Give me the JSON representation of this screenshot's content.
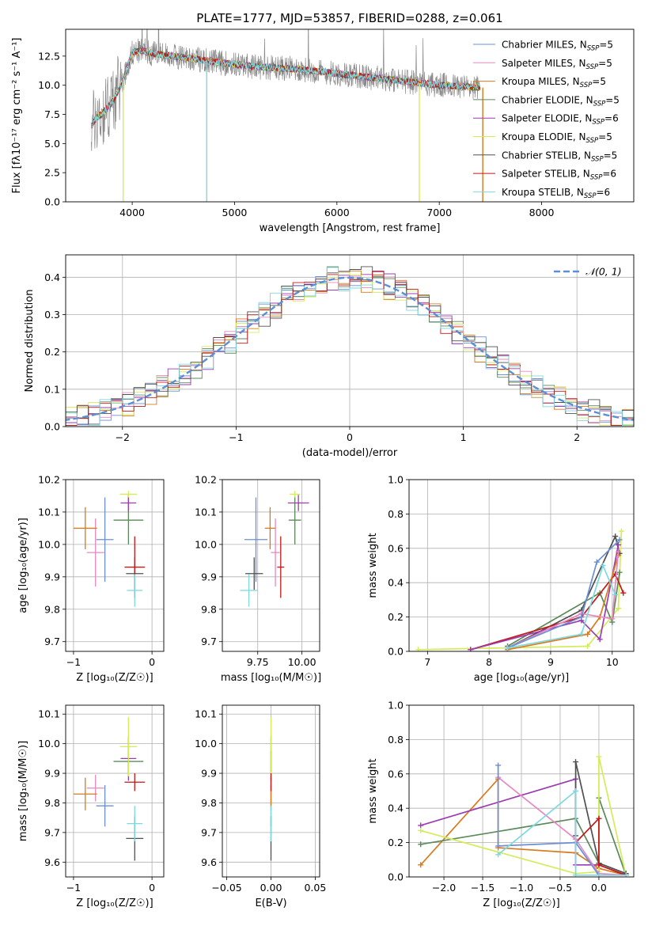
{
  "chart_data": [
    {
      "id": "spectrum",
      "type": "line",
      "title": "PLATE=1777, MJD=53857, FIBERID=0288, z=0.061",
      "xlabel": "wavelength [Angstrom, rest frame]",
      "ylabel": "Flux [f$_\\lambda$10$^{-17}$ erg cm$^{-2}$ s$^{-1}$ A$^{-1}$]",
      "ylabel_text": "Flux [fλ10⁻¹⁷ erg cm⁻² s⁻¹ A⁻¹]",
      "xlim": [
        3350,
        8900
      ],
      "ylim": [
        0,
        14.8
      ],
      "xticks": [
        4000,
        5000,
        6000,
        7000,
        8000
      ],
      "yticks": [
        0.0,
        2.5,
        5.0,
        7.5,
        10.0,
        12.5
      ],
      "grid": false,
      "legend": "top-right",
      "data_envelope": {
        "x": [
          3600,
          3650,
          3700,
          3800,
          3900,
          4000,
          4100,
          4200,
          4400,
          4600,
          4800,
          5000,
          5200,
          5400,
          5600,
          5800,
          6000,
          6200,
          6400,
          6600,
          6800,
          7000,
          7200,
          7400
        ],
        "y": [
          6.5,
          7.2,
          7.5,
          8.5,
          10.2,
          12.8,
          13.0,
          12.7,
          12.5,
          12.3,
          12.0,
          11.8,
          11.6,
          11.5,
          11.4,
          11.2,
          11.0,
          10.8,
          10.6,
          10.4,
          10.2,
          10.0,
          9.9,
          9.8
        ]
      },
      "series": [
        {
          "name": "Chabrier MILES, N$_{SSP}$=5",
          "label": "Chabrier MILES, N",
          "sub": "SSP",
          "n": "=5",
          "color": "#6b8fd6"
        },
        {
          "name": "Salpeter MILES, N$_{SSP}$=5",
          "label": "Salpeter MILES, N",
          "sub": "SSP",
          "n": "=5",
          "color": "#e888c0"
        },
        {
          "name": "Kroupa MILES, N$_{SSP}$=5",
          "label": "Kroupa MILES, N",
          "sub": "SSP",
          "n": "=5",
          "color": "#d87a1e"
        },
        {
          "name": "Chabrier ELODIE, N$_{SSP}$=5",
          "label": "Chabrier ELODIE, N",
          "sub": "SSP",
          "n": "=5",
          "color": "#5a8a5a"
        },
        {
          "name": "Salpeter ELODIE, N$_{SSP}$=6",
          "label": "Salpeter ELODIE, N",
          "sub": "SSP",
          "n": "=6",
          "color": "#9b3cb0"
        },
        {
          "name": "Kroupa ELODIE, N$_{SSP}$=5",
          "label": "Kroupa ELODIE, N",
          "sub": "SSP",
          "n": "=5",
          "color": "#d4ec5a"
        },
        {
          "name": "Chabrier STELIB, N$_{SSP}$=5",
          "label": "Chabrier STELIB, N",
          "sub": "SSP",
          "n": "=5",
          "color": "#505050"
        },
        {
          "name": "Salpeter STELIB, N$_{SSP}$=6",
          "label": "Salpeter STELIB, N",
          "sub": "SSP",
          "n": "=6",
          "color": "#c01818"
        },
        {
          "name": "Kroupa STELIB, N$_{SSP}$=6",
          "label": "Kroupa STELIB, N",
          "sub": "SSP",
          "n": "=6",
          "color": "#7fd8e0"
        }
      ]
    },
    {
      "id": "residuals",
      "type": "line",
      "xlabel": "(data-model)/error",
      "ylabel": "Normed distribution",
      "xlim": [
        -2.5,
        2.5
      ],
      "ylim": [
        0,
        0.46
      ],
      "xticks": [
        -2,
        -1,
        0,
        1,
        2
      ],
      "yticks": [
        0.0,
        0.1,
        0.2,
        0.3,
        0.4
      ],
      "grid": true,
      "legend": "top-right",
      "legend_label": "𝒩(0, 1)",
      "gaussian": {
        "mean": 0,
        "sigma": 1,
        "color": "#5b8fd6"
      },
      "histogram_bin_width": 0.1
    },
    {
      "id": "age_vs_Z",
      "type": "scatter",
      "xlabel": "Z [log₁₀(Z/Z☉)]",
      "ylabel": "age  [log₁₀(age/yr)]",
      "xlim": [
        -1.1,
        0.15
      ],
      "ylim": [
        9.67,
        10.2
      ],
      "xticks": [
        -1,
        0
      ],
      "yticks": [
        9.7,
        9.8,
        9.9,
        10.0,
        10.1,
        10.2
      ],
      "grid": true,
      "points": [
        {
          "x": -0.6,
          "y": 10.015,
          "xe": 0.22,
          "ye": 0.26,
          "color": "#6b8fd6"
        },
        {
          "x": -0.72,
          "y": 9.975,
          "xe": 0.22,
          "ye": 0.21,
          "color": "#e888c0"
        },
        {
          "x": -0.85,
          "y": 10.05,
          "xe": 0.3,
          "ye": 0.13,
          "color": "#d87a1e"
        },
        {
          "x": -0.3,
          "y": 10.075,
          "xe": 0.38,
          "ye": 0.15,
          "color": "#5a8a5a"
        },
        {
          "x": -0.3,
          "y": 10.128,
          "xe": 0.2,
          "ye": 0.05,
          "color": "#9b3cb0"
        },
        {
          "x": -0.3,
          "y": 10.155,
          "xe": 0.22,
          "ye": 0.02,
          "color": "#d4ec5a"
        },
        {
          "x": -0.22,
          "y": 9.91,
          "xe": 0.22,
          "ye": 0.1,
          "color": "#505050"
        },
        {
          "x": -0.22,
          "y": 9.93,
          "xe": 0.26,
          "ye": 0.19,
          "color": "#c01818"
        },
        {
          "x": -0.22,
          "y": 9.858,
          "xe": 0.2,
          "ye": 0.1,
          "color": "#7fd8e0"
        }
      ]
    },
    {
      "id": "age_vs_mass",
      "type": "scatter",
      "xlabel": "mass [log₁₀(M/M☉)]",
      "ylabel": "",
      "xlim": [
        9.55,
        10.1
      ],
      "ylim": [
        9.67,
        10.2
      ],
      "xticks": [
        9.75,
        10.0
      ],
      "xtick_labels": [
        "9.75",
        "10.00"
      ],
      "yticks": [
        9.7,
        9.8,
        9.9,
        10.0,
        10.1,
        10.2
      ],
      "grid": true,
      "points": [
        {
          "x": 9.74,
          "y": 10.015,
          "xe": 0.13,
          "ye": 0.26,
          "color": "#6b8fd6"
        },
        {
          "x": 9.85,
          "y": 9.975,
          "xe": 0.05,
          "ye": 0.21,
          "color": "#e888c0"
        },
        {
          "x": 9.82,
          "y": 10.05,
          "xe": 0.06,
          "ye": 0.13,
          "color": "#d87a1e"
        },
        {
          "x": 9.96,
          "y": 10.075,
          "xe": 0.07,
          "ye": 0.15,
          "color": "#5a8a5a"
        },
        {
          "x": 9.98,
          "y": 10.128,
          "xe": 0.12,
          "ye": 0.05,
          "color": "#9b3cb0"
        },
        {
          "x": 9.96,
          "y": 10.155,
          "xe": 0.06,
          "ye": 0.02,
          "color": "#d4ec5a"
        },
        {
          "x": 9.73,
          "y": 9.91,
          "xe": 0.1,
          "ye": 0.1,
          "color": "#505050"
        },
        {
          "x": 9.88,
          "y": 9.93,
          "xe": 0.04,
          "ye": 0.19,
          "color": "#c01818"
        },
        {
          "x": 9.7,
          "y": 9.858,
          "xe": 0.1,
          "ye": 0.1,
          "color": "#7fd8e0"
        }
      ]
    },
    {
      "id": "massweight_vs_age",
      "type": "line",
      "xlabel": "age  [log₁₀(age/yr)]",
      "ylabel": "mass weight",
      "xlim": [
        6.7,
        10.35
      ],
      "ylim": [
        0,
        1.0
      ],
      "xticks": [
        7,
        8,
        9,
        10
      ],
      "yticks": [
        0.0,
        0.2,
        0.4,
        0.6,
        0.8,
        1.0
      ],
      "grid": true,
      "series": [
        {
          "color": "#d4ec5a",
          "x": [
            6.85,
            9.6,
            10.1,
            10.15
          ],
          "y": [
            0.01,
            0.03,
            0.25,
            0.7
          ]
        },
        {
          "color": "#5a8a5a",
          "x": [
            8.3,
            9.8,
            10.0,
            10.12
          ],
          "y": [
            0.03,
            0.34,
            0.17,
            0.46
          ]
        },
        {
          "color": "#505050",
          "x": [
            8.3,
            9.5,
            10.05,
            10.12
          ],
          "y": [
            0.02,
            0.24,
            0.67,
            0.57
          ]
        },
        {
          "color": "#c01818",
          "x": [
            7.7,
            9.5,
            10.05,
            10.18
          ],
          "y": [
            0.01,
            0.2,
            0.45,
            0.34
          ]
        },
        {
          "color": "#9b3cb0",
          "x": [
            7.7,
            9.5,
            9.8,
            10.1
          ],
          "y": [
            0.01,
            0.18,
            0.07,
            0.62
          ]
        },
        {
          "color": "#d87a1e",
          "x": [
            8.3,
            9.6,
            9.8,
            10.1
          ],
          "y": [
            0.01,
            0.1,
            0.2,
            0.56
          ]
        },
        {
          "color": "#e888c0",
          "x": [
            8.3,
            9.5,
            10.0,
            10.1
          ],
          "y": [
            0.02,
            0.22,
            0.19,
            0.58
          ]
        },
        {
          "color": "#6b8fd6",
          "x": [
            8.3,
            9.5,
            9.75,
            10.12
          ],
          "y": [
            0.02,
            0.2,
            0.52,
            0.65
          ]
        },
        {
          "color": "#7fd8e0",
          "x": [
            8.3,
            9.5,
            9.85,
            10.05
          ],
          "y": [
            0.02,
            0.1,
            0.5,
            0.33
          ]
        }
      ]
    },
    {
      "id": "mass_vs_Z",
      "type": "scatter",
      "xlabel": "Z [log₁₀(Z/Z☉)]",
      "ylabel": "mass [log₁₀(M/M☉)]",
      "xlim": [
        -1.1,
        0.15
      ],
      "ylim": [
        9.55,
        10.13
      ],
      "xticks": [
        -1,
        0
      ],
      "yticks": [
        9.6,
        9.7,
        9.8,
        9.9,
        10.0,
        10.1
      ],
      "grid": true,
      "points": [
        {
          "x": -0.6,
          "y": 9.79,
          "xe": 0.22,
          "ye": 0.14,
          "color": "#6b8fd6"
        },
        {
          "x": -0.72,
          "y": 9.85,
          "xe": 0.22,
          "ye": 0.09,
          "color": "#e888c0"
        },
        {
          "x": -0.85,
          "y": 9.83,
          "xe": 0.3,
          "ye": 0.11,
          "color": "#d87a1e"
        },
        {
          "x": -0.3,
          "y": 9.94,
          "xe": 0.38,
          "ye": 0.07,
          "color": "#5a8a5a"
        },
        {
          "x": -0.3,
          "y": 9.95,
          "xe": 0.2,
          "ye": 0.15,
          "color": "#9b3cb0"
        },
        {
          "x": -0.3,
          "y": 9.99,
          "xe": 0.22,
          "ye": 0.2,
          "color": "#d4ec5a"
        },
        {
          "x": -0.22,
          "y": 9.68,
          "xe": 0.22,
          "ye": 0.15,
          "color": "#505050"
        },
        {
          "x": -0.22,
          "y": 9.87,
          "xe": 0.26,
          "ye": 0.06,
          "color": "#c01818"
        },
        {
          "x": -0.22,
          "y": 9.73,
          "xe": 0.2,
          "ye": 0.12,
          "color": "#7fd8e0"
        }
      ]
    },
    {
      "id": "mass_vs_EBV",
      "type": "scatter",
      "xlabel": "E(B-V)",
      "ylabel": "",
      "xlim": [
        -0.055,
        0.055
      ],
      "ylim": [
        9.55,
        10.13
      ],
      "xticks": [
        -0.05,
        0.0,
        0.05
      ],
      "xtick_labels": [
        "−0.05",
        "0.00",
        "0.05"
      ],
      "yticks": [
        9.6,
        9.7,
        9.8,
        9.9,
        10.0,
        10.1
      ],
      "grid": true,
      "points": [
        {
          "x": 0,
          "y": 9.79,
          "xe": 0,
          "ye": 0.14,
          "color": "#6b8fd6"
        },
        {
          "x": 0,
          "y": 9.85,
          "xe": 0,
          "ye": 0.09,
          "color": "#e888c0"
        },
        {
          "x": 0,
          "y": 9.83,
          "xe": 0,
          "ye": 0.11,
          "color": "#d87a1e"
        },
        {
          "x": 0,
          "y": 9.94,
          "xe": 0,
          "ye": 0.07,
          "color": "#5a8a5a"
        },
        {
          "x": 0,
          "y": 9.95,
          "xe": 0,
          "ye": 0.15,
          "color": "#9b3cb0"
        },
        {
          "x": 0,
          "y": 9.99,
          "xe": 0,
          "ye": 0.2,
          "color": "#d4ec5a"
        },
        {
          "x": 0,
          "y": 9.68,
          "xe": 0,
          "ye": 0.15,
          "color": "#505050"
        },
        {
          "x": 0,
          "y": 9.87,
          "xe": 0,
          "ye": 0.06,
          "color": "#c01818"
        },
        {
          "x": 0,
          "y": 9.73,
          "xe": 0,
          "ye": 0.12,
          "color": "#7fd8e0"
        }
      ]
    },
    {
      "id": "massweight_vs_Z",
      "type": "line",
      "xlabel": "Z [log₁₀(Z/Z☉)]",
      "ylabel": "mass weight",
      "xlim": [
        -2.45,
        0.45
      ],
      "ylim": [
        0,
        1.0
      ],
      "xticks": [
        -2.0,
        -1.5,
        -1.0,
        -0.5,
        0.0
      ],
      "xtick_labels": [
        "−2.0",
        "−1.5",
        "−1.0",
        "−0.5",
        "0.0"
      ],
      "yticks": [
        0.0,
        0.2,
        0.4,
        0.6,
        0.8,
        1.0
      ],
      "grid": true,
      "series": [
        {
          "color": "#d87a1e",
          "x": [
            -2.3,
            -1.3,
            -1.3,
            -0.3,
            0.0,
            0.35
          ],
          "y": [
            0.07,
            0.57,
            0.17,
            0.14,
            0.05,
            0.01
          ]
        },
        {
          "color": "#9b3cb0",
          "x": [
            -2.3,
            -0.3,
            -0.3,
            0.0,
            0.35
          ],
          "y": [
            0.3,
            0.57,
            0.07,
            0.07,
            0.01
          ]
        },
        {
          "color": "#5a8a5a",
          "x": [
            -2.3,
            -0.3,
            0.0,
            0.0,
            0.35
          ],
          "y": [
            0.19,
            0.34,
            0.08,
            0.46,
            0.01
          ]
        },
        {
          "color": "#d4ec5a",
          "x": [
            -2.3,
            -0.3,
            0.0,
            0.0,
            0.35
          ],
          "y": [
            0.27,
            0.02,
            0.03,
            0.7,
            0.01
          ]
        },
        {
          "color": "#505050",
          "x": [
            -0.3,
            -0.3,
            0.0,
            0.35
          ],
          "y": [
            0.24,
            0.67,
            0.08,
            0.02
          ]
        },
        {
          "color": "#c01818",
          "x": [
            -0.3,
            0.0,
            0.0,
            0.35
          ],
          "y": [
            0.2,
            0.34,
            0.07,
            0.01
          ]
        },
        {
          "color": "#e888c0",
          "x": [
            -1.3,
            -0.3,
            0.0,
            0.35
          ],
          "y": [
            0.58,
            0.22,
            0.02,
            0.01
          ]
        },
        {
          "color": "#6b8fd6",
          "x": [
            -1.3,
            -1.3,
            -0.3,
            0.0,
            0.35
          ],
          "y": [
            0.65,
            0.18,
            0.2,
            0.01,
            0.01
          ]
        },
        {
          "color": "#7fd8e0",
          "x": [
            -1.3,
            -0.3,
            -0.3,
            0.0,
            0.35
          ],
          "y": [
            0.13,
            0.5,
            0.01,
            0.01,
            0.01
          ]
        }
      ]
    }
  ]
}
